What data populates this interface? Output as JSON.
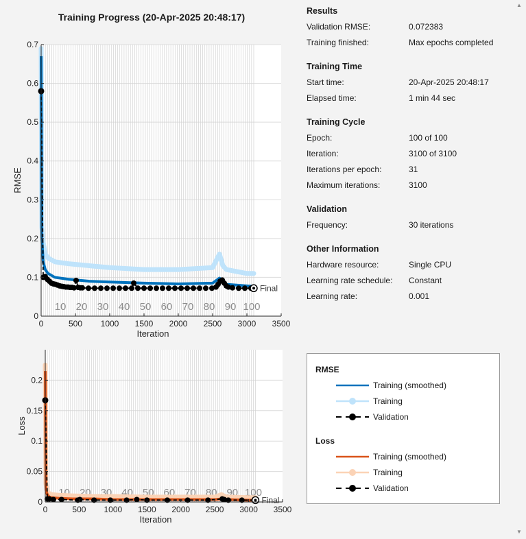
{
  "title": "Training Progress (20-Apr-2025 20:48:17)",
  "info": {
    "sections": [
      {
        "title": "Results",
        "rows": [
          {
            "label": "Validation RMSE:",
            "value": "0.072383"
          },
          {
            "label": "Training finished:",
            "value": "Max epochs completed"
          }
        ]
      },
      {
        "title": "Training Time",
        "rows": [
          {
            "label": "Start time:",
            "value": "20-Apr-2025 20:48:17"
          },
          {
            "label": "Elapsed time:",
            "value": "1 min 44 sec"
          }
        ]
      },
      {
        "title": "Training Cycle",
        "rows": [
          {
            "label": "Epoch:",
            "value": "100 of 100"
          },
          {
            "label": "Iteration:",
            "value": "3100 of 3100"
          },
          {
            "label": "Iterations per epoch:",
            "value": "31"
          },
          {
            "label": "Maximum iterations:",
            "value": "3100"
          }
        ]
      },
      {
        "title": "Validation",
        "rows": [
          {
            "label": "Frequency:",
            "value": "30 iterations"
          }
        ]
      },
      {
        "title": "Other Information",
        "rows": [
          {
            "label": "Hardware resource:",
            "value": "Single CPU"
          },
          {
            "label": "Learning rate schedule:",
            "value": "Constant"
          },
          {
            "label": "Learning rate:",
            "value": "0.001"
          }
        ]
      }
    ]
  },
  "legend": {
    "groups": [
      {
        "title": "RMSE",
        "items": [
          {
            "label": "Training (smoothed)",
            "style": "line",
            "color": "#0072bd"
          },
          {
            "label": "Training",
            "style": "line-marker",
            "color": "#bfe3fb"
          },
          {
            "label": "Validation",
            "style": "dashed-marker",
            "color": "#000000"
          }
        ]
      },
      {
        "title": "Loss",
        "items": [
          {
            "label": "Training (smoothed)",
            "style": "line",
            "color": "#d95319"
          },
          {
            "label": "Training",
            "style": "line-marker",
            "color": "#fbd3b6"
          },
          {
            "label": "Validation",
            "style": "dashed-marker",
            "color": "#000000"
          }
        ]
      }
    ]
  },
  "chart_data": [
    {
      "type": "line",
      "xlabel": "Iteration",
      "ylabel": "RMSE",
      "xlim": [
        0,
        3500
      ],
      "ylim": [
        0,
        0.7
      ],
      "xticks": [
        0,
        500,
        1000,
        1500,
        2000,
        2500,
        3000,
        3500
      ],
      "yticks": [
        0,
        0.1,
        0.2,
        0.3,
        0.4,
        0.5,
        0.6,
        0.7
      ],
      "ytick_labels": [
        "0",
        "0.1",
        "0.2",
        "0.3",
        "0.4",
        "0.5",
        "0.6",
        "0.7"
      ],
      "epoch_labels": [
        "10",
        "20",
        "30",
        "40",
        "50",
        "60",
        "70",
        "80",
        "90",
        "100"
      ],
      "final_label": "Final",
      "grid": true,
      "colors": {
        "smoothed": "#0072bd",
        "raw": "#bfe3fb",
        "validation": "#000000"
      },
      "series": [
        {
          "name": "Training (smoothed)",
          "x": [
            0,
            10,
            30,
            60,
            100,
            200,
            400,
            700,
            1000,
            1500,
            2000,
            2500,
            2600,
            2650,
            2700,
            3000,
            3100
          ],
          "values": [
            0.67,
            0.2,
            0.14,
            0.12,
            0.11,
            0.1,
            0.095,
            0.09,
            0.088,
            0.085,
            0.083,
            0.085,
            0.098,
            0.09,
            0.082,
            0.078,
            0.077
          ]
        },
        {
          "name": "Training",
          "x": [
            0,
            10,
            30,
            60,
            100,
            200,
            400,
            700,
            1000,
            1500,
            2000,
            2500,
            2600,
            2650,
            2700,
            3000,
            3100
          ],
          "values": [
            0.69,
            0.23,
            0.19,
            0.16,
            0.15,
            0.14,
            0.135,
            0.13,
            0.125,
            0.12,
            0.12,
            0.125,
            0.16,
            0.13,
            0.12,
            0.11,
            0.11
          ]
        },
        {
          "name": "Validation",
          "x": [
            0,
            30,
            60,
            90,
            120,
            150,
            180,
            210,
            240,
            270,
            300,
            330,
            360,
            390,
            420,
            450,
            480,
            510,
            540,
            570,
            600,
            690,
            780,
            870,
            960,
            1050,
            1140,
            1230,
            1320,
            1350,
            1410,
            1500,
            1590,
            1680,
            1770,
            1860,
            1950,
            2040,
            2130,
            2220,
            2310,
            2400,
            2490,
            2550,
            2580,
            2610,
            2640,
            2670,
            2700,
            2730,
            2790,
            2880,
            2970,
            3060,
            3100
          ],
          "values": [
            0.58,
            0.1,
            0.102,
            0.095,
            0.09,
            0.085,
            0.083,
            0.082,
            0.08,
            0.078,
            0.077,
            0.076,
            0.075,
            0.075,
            0.074,
            0.074,
            0.073,
            0.092,
            0.074,
            0.073,
            0.073,
            0.072,
            0.072,
            0.072,
            0.072,
            0.072,
            0.072,
            0.072,
            0.072,
            0.085,
            0.072,
            0.072,
            0.072,
            0.072,
            0.072,
            0.072,
            0.072,
            0.072,
            0.072,
            0.072,
            0.072,
            0.072,
            0.072,
            0.075,
            0.082,
            0.09,
            0.093,
            0.085,
            0.078,
            0.075,
            0.073,
            0.072,
            0.072,
            0.072,
            0.072
          ]
        }
      ]
    },
    {
      "type": "line",
      "xlabel": "Iteration",
      "ylabel": "Loss",
      "xlim": [
        0,
        3500
      ],
      "ylim": [
        0,
        0.25
      ],
      "xticks": [
        0,
        500,
        1000,
        1500,
        2000,
        2500,
        3000,
        3500
      ],
      "yticks": [
        0,
        0.05,
        0.1,
        0.15,
        0.2
      ],
      "ytick_labels": [
        "0",
        "0.05",
        "0.1",
        "0.15",
        "0.2"
      ],
      "epoch_labels": [
        "10",
        "20",
        "30",
        "40",
        "50",
        "60",
        "70",
        "80",
        "90",
        "100"
      ],
      "final_label": "Final",
      "grid": true,
      "colors": {
        "smoothed": "#d95319",
        "raw": "#fbd3b6",
        "validation": "#000000"
      },
      "series": [
        {
          "name": "Training (smoothed)",
          "x": [
            0,
            10,
            30,
            60,
            100,
            200,
            400,
            700,
            1000,
            1500,
            2000,
            2500,
            2600,
            2650,
            2700,
            3000,
            3100
          ],
          "values": [
            0.215,
            0.02,
            0.012,
            0.008,
            0.007,
            0.006,
            0.005,
            0.005,
            0.004,
            0.004,
            0.004,
            0.004,
            0.005,
            0.005,
            0.004,
            0.003,
            0.003
          ]
        },
        {
          "name": "Training",
          "x": [
            0,
            10,
            30,
            60,
            100,
            200,
            400,
            700,
            1000,
            1500,
            2000,
            2500,
            2600,
            2650,
            2700,
            3000,
            3100
          ],
          "values": [
            0.225,
            0.03,
            0.018,
            0.013,
            0.012,
            0.011,
            0.01,
            0.009,
            0.009,
            0.008,
            0.008,
            0.008,
            0.012,
            0.009,
            0.008,
            0.007,
            0.007
          ]
        },
        {
          "name": "Validation",
          "x": [
            0,
            30,
            60,
            120,
            240,
            480,
            510,
            720,
            960,
            1200,
            1350,
            1500,
            1800,
            2100,
            2400,
            2610,
            2640,
            2700,
            2900,
            3100
          ],
          "values": [
            0.167,
            0.005,
            0.005,
            0.004,
            0.004,
            0.003,
            0.004,
            0.003,
            0.003,
            0.003,
            0.004,
            0.003,
            0.003,
            0.003,
            0.003,
            0.005,
            0.004,
            0.003,
            0.003,
            0.003
          ]
        }
      ]
    }
  ]
}
